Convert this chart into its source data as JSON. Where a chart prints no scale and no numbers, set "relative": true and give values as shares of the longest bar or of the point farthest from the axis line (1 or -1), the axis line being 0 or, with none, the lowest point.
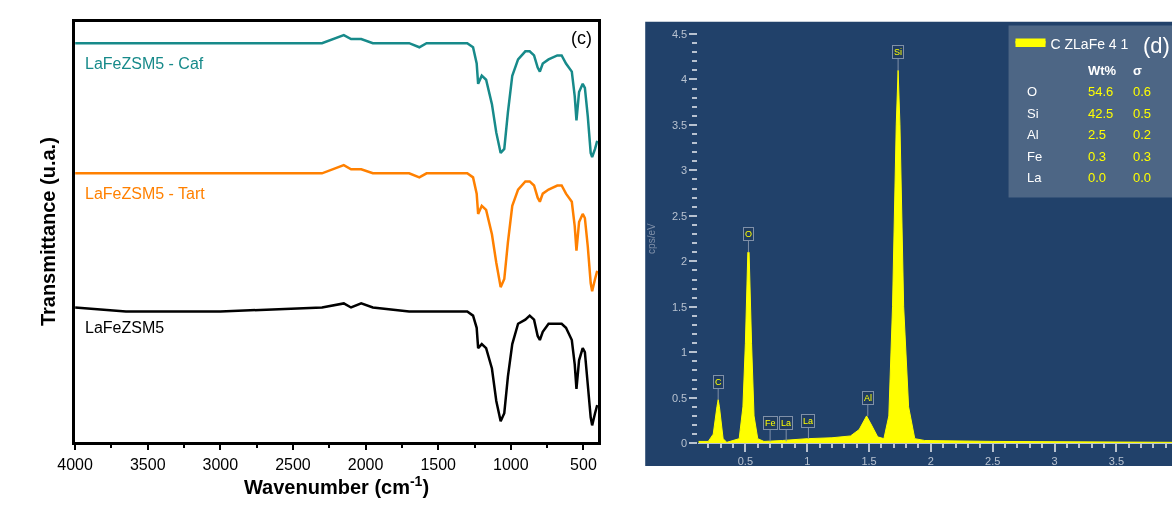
{
  "chart_data": [
    {
      "type": "line",
      "title": "(c)",
      "xlabel": "Wavenumber (cm$^{-1}$)",
      "ylabel": "Transmittance (u.a.)",
      "relative": true,
      "legend": false,
      "grid": false,
      "tick_labels": "x",
      "x": [
        4000,
        3650,
        3000,
        2300,
        2150,
        2100,
        2030,
        1950,
        1700,
        1630,
        1580,
        1300,
        1260,
        1235,
        1225,
        1200,
        1170,
        1130,
        1100,
        1070,
        1045,
        1020,
        990,
        950,
        900,
        870,
        840,
        815,
        800,
        780,
        740,
        680,
        650,
        620,
        580,
        560,
        548,
        530,
        505,
        490,
        470,
        450,
        440,
        420,
        405
      ],
      "xlim": [
        4000,
        400
      ],
      "xticks": [
        4000,
        3500,
        3000,
        2500,
        2000,
        1500,
        1000,
        500
      ],
      "series": [
        {
          "name": "LaFeZSM5 - Caf",
          "color": "#178a8a",
          "values": [
            0.98,
            0.98,
            0.98,
            0.98,
            1.0,
            0.99,
            0.99,
            0.98,
            0.98,
            0.97,
            0.98,
            0.98,
            0.97,
            0.93,
            0.88,
            0.9,
            0.89,
            0.83,
            0.76,
            0.71,
            0.72,
            0.81,
            0.9,
            0.94,
            0.96,
            0.96,
            0.95,
            0.92,
            0.91,
            0.93,
            0.94,
            0.95,
            0.95,
            0.93,
            0.91,
            0.85,
            0.79,
            0.86,
            0.88,
            0.87,
            0.8,
            0.71,
            0.7,
            0.72,
            0.74
          ]
        },
        {
          "name": "LaFeZSM5 - Tart",
          "color": "#ff8000",
          "values": [
            0.66,
            0.66,
            0.66,
            0.66,
            0.68,
            0.67,
            0.67,
            0.66,
            0.66,
            0.65,
            0.66,
            0.66,
            0.65,
            0.61,
            0.56,
            0.58,
            0.57,
            0.51,
            0.44,
            0.38,
            0.4,
            0.49,
            0.58,
            0.62,
            0.64,
            0.64,
            0.63,
            0.6,
            0.59,
            0.61,
            0.62,
            0.63,
            0.63,
            0.61,
            0.59,
            0.53,
            0.47,
            0.54,
            0.56,
            0.55,
            0.48,
            0.39,
            0.37,
            0.4,
            0.42
          ]
        },
        {
          "name": "LaFeZSM5",
          "color": "#000000",
          "values": [
            0.33,
            0.32,
            0.32,
            0.33,
            0.34,
            0.33,
            0.34,
            0.33,
            0.32,
            0.32,
            0.32,
            0.32,
            0.31,
            0.28,
            0.23,
            0.24,
            0.23,
            0.18,
            0.1,
            0.05,
            0.07,
            0.16,
            0.24,
            0.29,
            0.3,
            0.31,
            0.3,
            0.26,
            0.25,
            0.27,
            0.29,
            0.29,
            0.29,
            0.28,
            0.25,
            0.19,
            0.13,
            0.2,
            0.23,
            0.22,
            0.14,
            0.06,
            0.04,
            0.07,
            0.09
          ]
        }
      ]
    },
    {
      "type": "area",
      "title": "(d)",
      "ylabel": "cps/eV",
      "legend": "top right",
      "grid": false,
      "x": [
        0.12,
        0.2,
        0.24,
        0.27,
        0.28,
        0.29,
        0.32,
        0.35,
        0.45,
        0.48,
        0.5,
        0.52,
        0.53,
        0.55,
        0.57,
        0.6,
        0.65,
        0.8,
        1.0,
        1.2,
        1.35,
        1.42,
        1.48,
        1.52,
        1.57,
        1.62,
        1.66,
        1.69,
        1.72,
        1.735,
        1.75,
        1.78,
        1.82,
        1.87,
        1.95,
        2.5,
        3.95
      ],
      "xlim": [
        0.12,
        3.95
      ],
      "xticks": [
        {
          "value": 0.5,
          "label": "0.5"
        },
        1,
        {
          "value": 1.5,
          "label": "1.5"
        },
        2,
        {
          "value": 2.5,
          "label": "2.5"
        },
        3,
        {
          "value": 3.5,
          "label": "3.5"
        }
      ],
      "ylim": [
        0,
        4.5
      ],
      "yticks": [
        0,
        {
          "value": 0.5,
          "label": "0.5"
        },
        1,
        {
          "value": 1.5,
          "label": "1.5"
        },
        2,
        {
          "value": 2.5,
          "label": "2.5"
        },
        3,
        {
          "value": 3.5,
          "label": "3.5"
        },
        4,
        {
          "value": 4.5,
          "label": "4.5"
        }
      ],
      "series": [
        {
          "name": "C ZLaFe 4 1",
          "color": "#ffff00",
          "values": [
            0.02,
            0.02,
            0.1,
            0.4,
            0.48,
            0.4,
            0.05,
            0.01,
            0.05,
            0.4,
            1.1,
            2.1,
            2.1,
            1.1,
            0.3,
            0.05,
            0.02,
            0.03,
            0.05,
            0.06,
            0.08,
            0.15,
            0.3,
            0.2,
            0.07,
            0.05,
            0.3,
            1.5,
            3.5,
            4.1,
            3.5,
            1.5,
            0.4,
            0.05,
            0.03,
            0.02,
            0.01
          ]
        }
      ],
      "annotations": [
        {
          "text": "C",
          "x": 0.28,
          "y": 0.48
        },
        {
          "text": "O",
          "x": 0.525,
          "y": 2.1
        },
        {
          "text": "Fe",
          "x": 0.7,
          "y": 0.02
        },
        {
          "text": "La",
          "x": 0.83,
          "y": 0.02
        },
        {
          "text": "La",
          "x": 1.01,
          "y": 0.05
        },
        {
          "text": "Al",
          "x": 1.49,
          "y": 0.3
        },
        {
          "text": "Si",
          "x": 1.735,
          "y": 4.1
        },
        "Wt%",
        "σ",
        "O",
        "54.6",
        "0.6",
        "Si",
        "42.5",
        "0.5",
        "Al",
        "2.5",
        "0.2",
        "Fe",
        "0.3",
        "0.3",
        "La",
        "0.0",
        "0.0"
      ]
    }
  ]
}
